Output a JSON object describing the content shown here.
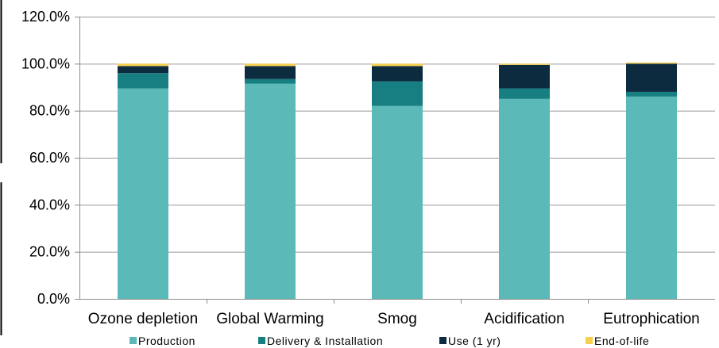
{
  "chart_data": {
    "type": "bar",
    "stacked": true,
    "categories": [
      "Ozone depletion",
      "Global Warming",
      "Smog",
      "Acidification",
      "Eutrophication"
    ],
    "series": [
      {
        "name": "Production",
        "color": "#5bbab7",
        "values": [
          89.5,
          91.5,
          82.0,
          85.0,
          86.0
        ]
      },
      {
        "name": "Delivery & Installation",
        "color": "#177f82",
        "values": [
          6.5,
          2.0,
          10.5,
          4.5,
          2.0
        ]
      },
      {
        "name": "Use (1 yr)",
        "color": "#0d2b3f",
        "values": [
          3.0,
          5.5,
          6.5,
          10.0,
          12.0
        ]
      },
      {
        "name": "End-of-life",
        "color": "#f6d04d",
        "values": [
          1.0,
          1.0,
          1.0,
          0.5,
          0.5
        ]
      }
    ],
    "ylim": [
      0,
      120
    ],
    "yticks": [
      0,
      20,
      40,
      60,
      80,
      100,
      120
    ],
    "ytick_labels": [
      "0.0%",
      "20.0%",
      "40.0%",
      "60.0%",
      "80.0%",
      "100.0%",
      "120.0%"
    ],
    "grid": true,
    "legend_position": "bottom",
    "title": "",
    "xlabel": "",
    "ylabel": ""
  }
}
